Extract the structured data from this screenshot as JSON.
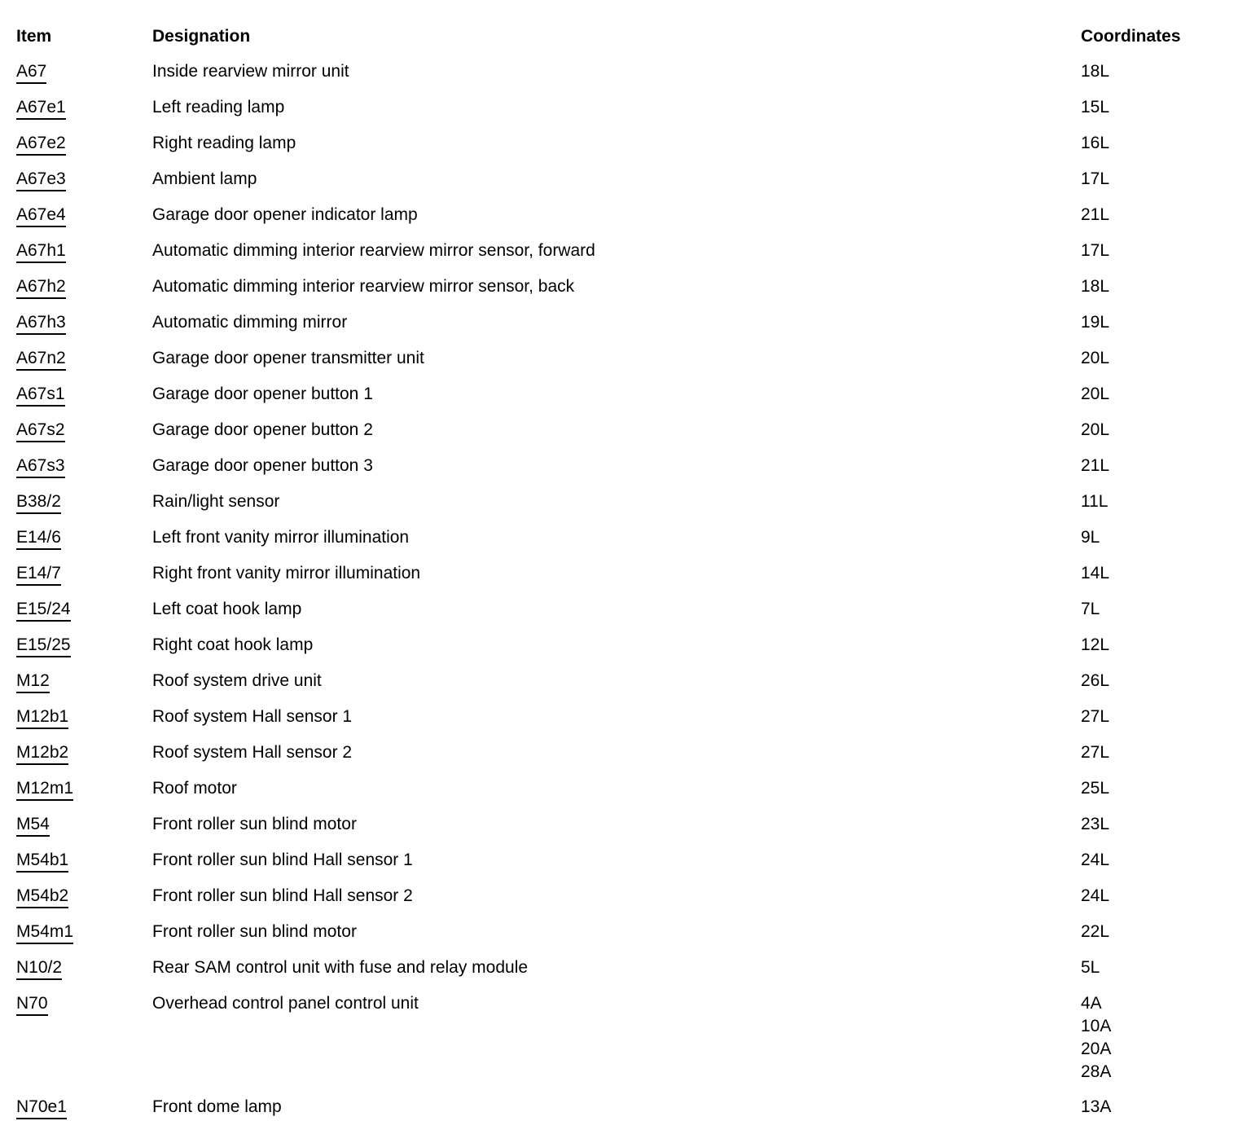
{
  "page": {
    "background_color": "#ffffff",
    "text_color": "#000000",
    "link_underline_color": "#000000"
  },
  "table": {
    "headers": {
      "item": "Item",
      "designation": "Designation",
      "coordinates": "Coordinates"
    },
    "rows": [
      {
        "item": "A67",
        "designation": "Inside rearview mirror unit",
        "coordinates": [
          "18L"
        ]
      },
      {
        "item": "A67e1",
        "designation": "Left reading lamp",
        "coordinates": [
          "15L"
        ]
      },
      {
        "item": "A67e2",
        "designation": "Right reading lamp",
        "coordinates": [
          "16L"
        ]
      },
      {
        "item": "A67e3",
        "designation": "Ambient lamp",
        "coordinates": [
          "17L"
        ]
      },
      {
        "item": "A67e4",
        "designation": "Garage door opener indicator lamp",
        "coordinates": [
          "21L"
        ]
      },
      {
        "item": "A67h1",
        "designation": "Automatic dimming interior rearview mirror sensor, forward",
        "coordinates": [
          "17L"
        ]
      },
      {
        "item": "A67h2",
        "designation": "Automatic dimming interior rearview mirror sensor, back",
        "coordinates": [
          "18L"
        ]
      },
      {
        "item": "A67h3",
        "designation": "Automatic dimming mirror",
        "coordinates": [
          "19L"
        ]
      },
      {
        "item": "A67n2",
        "designation": "Garage door opener transmitter unit",
        "coordinates": [
          "20L"
        ]
      },
      {
        "item": "A67s1",
        "designation": "Garage door opener button 1",
        "coordinates": [
          "20L"
        ]
      },
      {
        "item": "A67s2",
        "designation": "Garage door opener button 2",
        "coordinates": [
          "20L"
        ]
      },
      {
        "item": "A67s3",
        "designation": "Garage door opener button 3",
        "coordinates": [
          "21L"
        ]
      },
      {
        "item": "B38/2",
        "designation": "Rain/light sensor",
        "coordinates": [
          "11L"
        ]
      },
      {
        "item": "E14/6",
        "designation": "Left front vanity mirror illumination",
        "coordinates": [
          "9L"
        ]
      },
      {
        "item": "E14/7",
        "designation": "Right front vanity mirror illumination",
        "coordinates": [
          "14L"
        ]
      },
      {
        "item": "E15/24",
        "designation": "Left coat hook lamp",
        "coordinates": [
          "7L"
        ]
      },
      {
        "item": "E15/25",
        "designation": "Right coat hook lamp",
        "coordinates": [
          "12L"
        ]
      },
      {
        "item": "M12",
        "designation": "Roof system drive unit",
        "coordinates": [
          "26L"
        ]
      },
      {
        "item": "M12b1",
        "designation": "Roof system Hall sensor 1",
        "coordinates": [
          "27L"
        ]
      },
      {
        "item": "M12b2",
        "designation": "Roof system Hall sensor 2",
        "coordinates": [
          "27L"
        ]
      },
      {
        "item": "M12m1",
        "designation": "Roof motor",
        "coordinates": [
          "25L"
        ]
      },
      {
        "item": "M54",
        "designation": "Front roller sun blind motor",
        "coordinates": [
          "23L"
        ]
      },
      {
        "item": "M54b1",
        "designation": "Front roller sun blind Hall sensor 1",
        "coordinates": [
          "24L"
        ]
      },
      {
        "item": "M54b2",
        "designation": "Front roller sun blind Hall sensor 2",
        "coordinates": [
          "24L"
        ]
      },
      {
        "item": "M54m1",
        "designation": "Front roller sun blind motor",
        "coordinates": [
          "22L"
        ]
      },
      {
        "item": "N10/2",
        "designation": "Rear SAM control unit with fuse and relay module",
        "coordinates": [
          "5L"
        ]
      },
      {
        "item": "N70",
        "designation": "Overhead control panel control unit",
        "coordinates": [
          "4A",
          "10A",
          "20A",
          "28A"
        ]
      },
      {
        "item": "N70e1",
        "designation": "Front dome lamp",
        "coordinates": [
          "13A"
        ]
      }
    ]
  }
}
